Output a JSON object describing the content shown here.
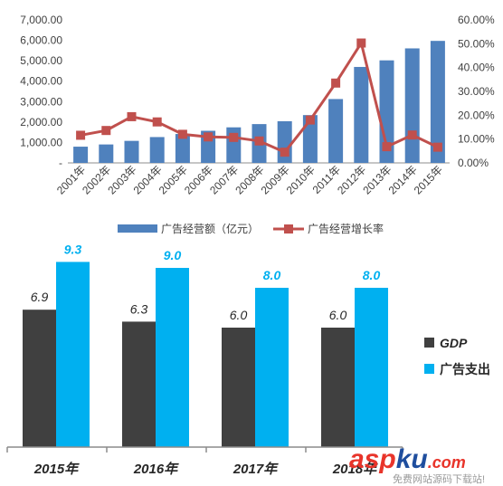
{
  "chart_data": [
    {
      "type": "bar",
      "secondary_type": "line",
      "categories": [
        "2001年",
        "2002年",
        "2003年",
        "2004年",
        "2005年",
        "2006年",
        "2007年",
        "2008年",
        "2009年",
        "2010年",
        "2011年",
        "2012年",
        "2013年",
        "2014年",
        "2015年"
      ],
      "series": [
        {
          "name": "广告经营额（亿元）",
          "type": "bar",
          "axis": "left",
          "color": "#4f81bd",
          "values": [
            795,
            903,
            1079,
            1265,
            1416,
            1573,
            1741,
            1900,
            2041,
            2341,
            3126,
            4698,
            5020,
            5606,
            5973
          ]
        },
        {
          "name": "广告经营增长率",
          "type": "line",
          "axis": "right",
          "color": "#c0504d",
          "values": [
            11.6,
            13.6,
            19.4,
            17.2,
            12.0,
            10.9,
            10.7,
            9.2,
            4.5,
            18.0,
            33.5,
            50.3,
            6.8,
            11.7,
            6.6
          ]
        }
      ],
      "left_axis": {
        "min": 0,
        "max": 7000,
        "ticks": [
          "-",
          "1,000.00",
          "2,000.00",
          "3,000.00",
          "4,000.00",
          "5,000.00",
          "6,000.00",
          "7,000.00"
        ]
      },
      "right_axis": {
        "min": 0,
        "max": 60,
        "ticks": [
          "0.00%",
          "10.00%",
          "20.00%",
          "30.00%",
          "40.00%",
          "50.00%",
          "60.00%"
        ]
      },
      "grid": false,
      "legend_position": "bottom"
    },
    {
      "type": "bar",
      "categories": [
        "2015年",
        "2016年",
        "2017年",
        "2018年"
      ],
      "series": [
        {
          "name": "GDP",
          "color": "#404040",
          "values": [
            6.9,
            6.3,
            6.0,
            6.0
          ],
          "labels": [
            "6.9",
            "6.3",
            "6.0",
            "6.0"
          ]
        },
        {
          "name": "广告支出",
          "color": "#00b0f0",
          "values": [
            9.3,
            9.0,
            8.0,
            8.0
          ],
          "labels": [
            "9.3",
            "9.0",
            "8.0",
            "8.0"
          ]
        }
      ],
      "grid": false,
      "legend_position": "right"
    }
  ],
  "watermark": {
    "brand_asp": "asp",
    "brand_ku": "ku",
    "brand_com": ".com",
    "tagline": "免费网站源码下载站!"
  }
}
